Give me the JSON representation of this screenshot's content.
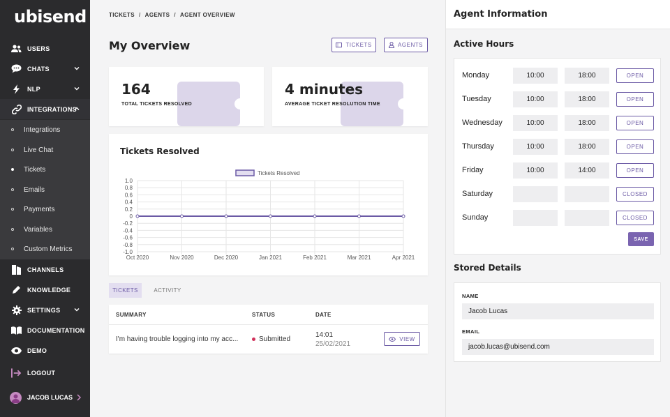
{
  "sidebar": {
    "logo": "ubisend",
    "nav": [
      {
        "label": "USERS",
        "icon": "users-icon"
      },
      {
        "label": "CHATS",
        "icon": "chat-bubble-icon"
      },
      {
        "label": "NLP",
        "icon": "lightning-icon"
      },
      {
        "label": "INTEGRATIONS",
        "icon": "link-icon"
      },
      {
        "label": "CHANNELS",
        "icon": "channels-icon"
      },
      {
        "label": "KNOWLEDGE",
        "icon": "pencil-icon"
      },
      {
        "label": "SETTINGS",
        "icon": "gear-icon"
      },
      {
        "label": "DOCUMENTATION",
        "icon": "book-icon"
      },
      {
        "label": "DEMO",
        "icon": "eye-icon"
      },
      {
        "label": "LOGOUT",
        "icon": "logout-icon"
      }
    ],
    "integrations_sub": [
      "Integrations",
      "Live Chat",
      "Tickets",
      "Emails",
      "Payments",
      "Variables",
      "Custom Metrics"
    ],
    "active_sub": "Tickets",
    "user_name": "JACOB LUCAS"
  },
  "breadcrumb": [
    "TICKETS",
    "AGENTS",
    "AGENT OVERVIEW"
  ],
  "breadcrumb_sep": "/",
  "page_title": "My Overview",
  "header_buttons": {
    "tickets": "TICKETS",
    "agents": "AGENTS"
  },
  "stats": [
    {
      "value": "164",
      "label": "TOTAL TICKETS RESOLVED"
    },
    {
      "value": "4 minutes",
      "label": "AVERAGE TICKET RESOLUTION TIME"
    }
  ],
  "chart_title": "Tickets Resolved",
  "chart_data": {
    "type": "line",
    "title": "Tickets Resolved",
    "categories": [
      "Oct 2020",
      "Nov 2020",
      "Dec 2020",
      "Jan 2021",
      "Feb 2021",
      "Mar 2021",
      "Apr 2021"
    ],
    "series": [
      {
        "name": "Tickets Resolved",
        "values": [
          0,
          0,
          0,
          0,
          0,
          0,
          0
        ]
      }
    ],
    "yticks": [
      "1.0",
      "0.8",
      "0.6",
      "0.4",
      "0.2",
      "0",
      "-0.2",
      "-0.4",
      "-0.6",
      "-0.8",
      "-1.0"
    ],
    "ylim": [
      -1.0,
      1.0
    ],
    "grid": true,
    "legend": "top-center",
    "color": "#6b5aa5"
  },
  "tabs": [
    "TICKETS",
    "ACTIVITY"
  ],
  "table": {
    "headers": [
      "SUMMARY",
      "STATUS",
      "DATE"
    ],
    "rows": [
      {
        "summary": "I'm having trouble logging into my acc...",
        "status": "Submitted",
        "time": "14:01",
        "date": "25/02/2021",
        "action": "VIEW"
      }
    ],
    "status_color": "#d0305a"
  },
  "right": {
    "title": "Agent Information",
    "hours_title": "Active Hours",
    "days": [
      {
        "day": "Monday",
        "start": "10:00",
        "end": "18:00",
        "state": "OPEN"
      },
      {
        "day": "Tuesday",
        "start": "10:00",
        "end": "18:00",
        "state": "OPEN"
      },
      {
        "day": "Wednesday",
        "start": "10:00",
        "end": "18:00",
        "state": "OPEN"
      },
      {
        "day": "Thursday",
        "start": "10:00",
        "end": "18:00",
        "state": "OPEN"
      },
      {
        "day": "Friday",
        "start": "10:00",
        "end": "14:00",
        "state": "OPEN"
      },
      {
        "day": "Saturday",
        "start": "",
        "end": "",
        "state": "CLOSED"
      },
      {
        "day": "Sunday",
        "start": "",
        "end": "",
        "state": "CLOSED"
      }
    ],
    "save_label": "SAVE",
    "details_title": "Stored Details",
    "name_label": "NAME",
    "name_value": "Jacob Lucas",
    "email_label": "EMAIL",
    "email_value": "jacob.lucas@ubisend.com"
  },
  "colors": {
    "accent": "#6b5aa5",
    "sidebar": "#2b2b2d"
  }
}
